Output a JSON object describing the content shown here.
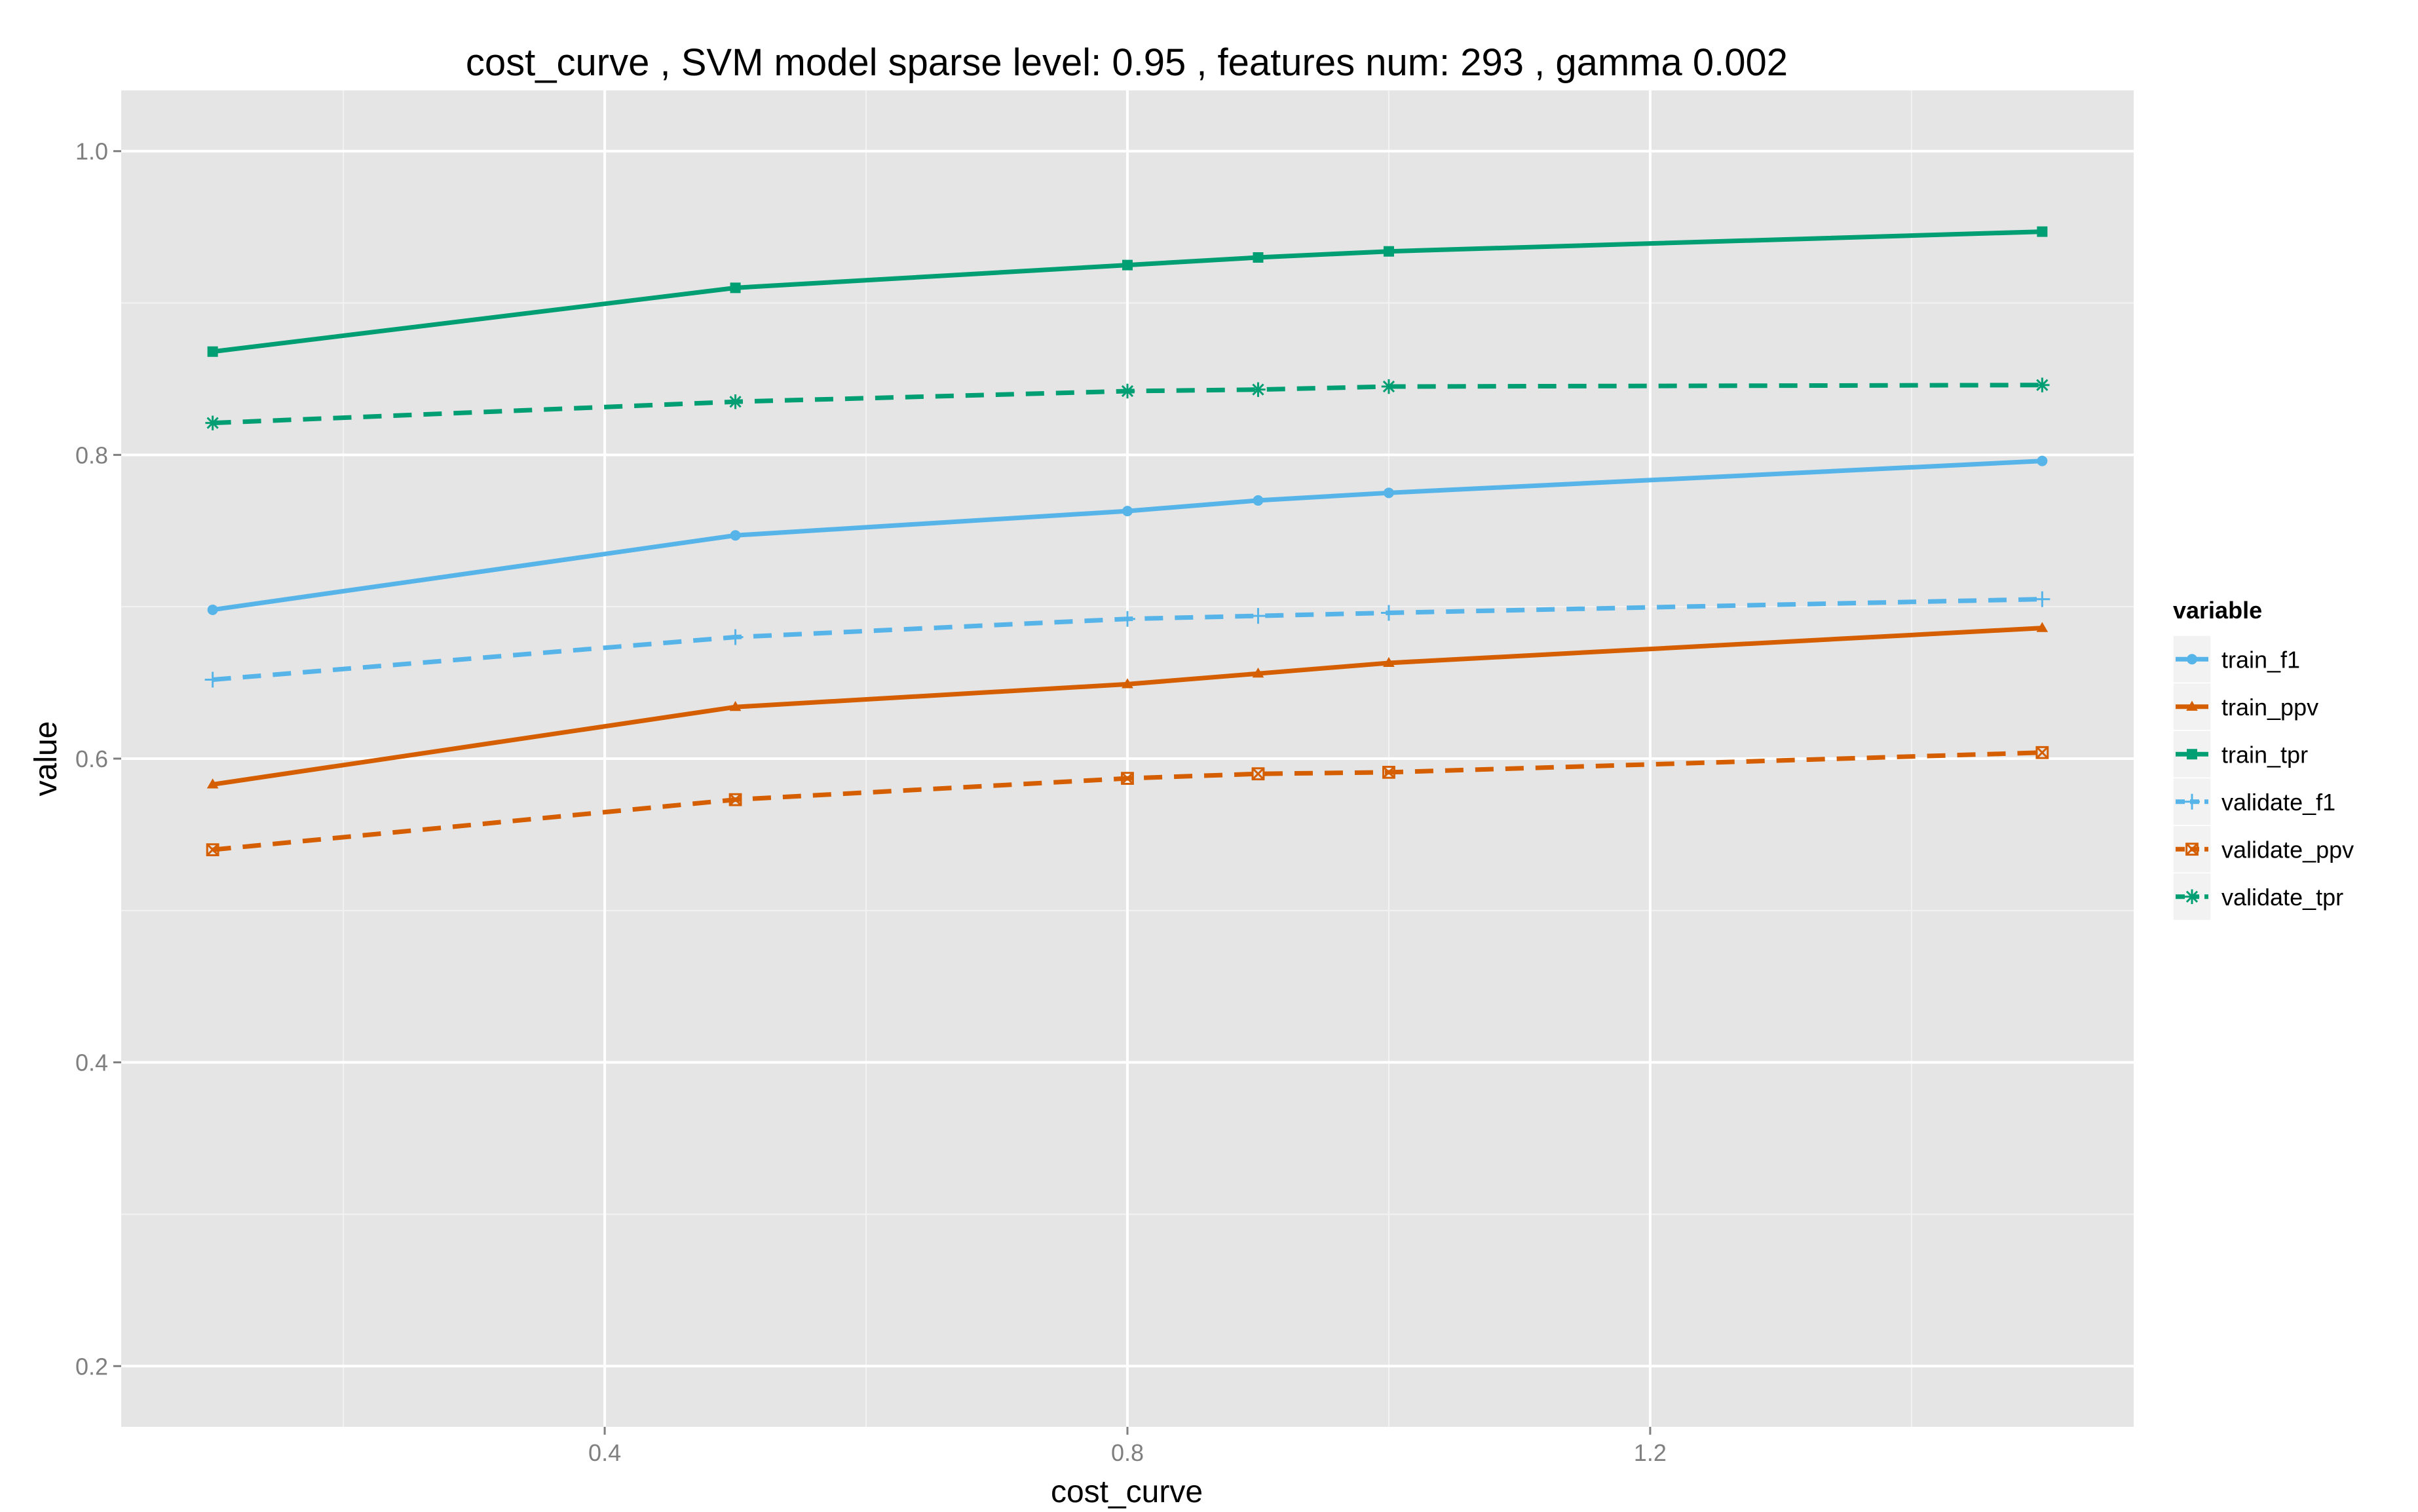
{
  "chart_data": {
    "type": "line",
    "title": "cost_curve ,  SVM model sparse level: 0.95 , features num: 293 , gamma 0.002",
    "xlabel": "cost_curve",
    "ylabel": "value",
    "xlim": [
      0.03,
      1.57
    ],
    "ylim": [
      0.16,
      1.04
    ],
    "x_ticks": [
      0.4,
      0.8,
      1.2
    ],
    "x_tick_labels": [
      "0.4",
      "0.8",
      "1.2"
    ],
    "y_ticks": [
      0.2,
      0.4,
      0.6,
      0.8,
      1.0
    ],
    "y_tick_labels": [
      "0.2",
      "0.4",
      "0.6",
      "0.8",
      "1.0"
    ],
    "grid": true,
    "legend_title": "variable",
    "legend_position": "right",
    "x": [
      0.1,
      0.5,
      0.8,
      0.9,
      1.0,
      1.5
    ],
    "series": [
      {
        "name": "train_f1",
        "color": "#56b4e9",
        "linetype": "solid",
        "marker": "circle",
        "values": [
          0.698,
          0.747,
          0.763,
          0.77,
          0.775,
          0.796
        ]
      },
      {
        "name": "train_ppv",
        "color": "#d55e00",
        "linetype": "solid",
        "marker": "triangle",
        "values": [
          0.583,
          0.634,
          0.649,
          0.656,
          0.663,
          0.686
        ]
      },
      {
        "name": "train_tpr",
        "color": "#009e73",
        "linetype": "solid",
        "marker": "square",
        "values": [
          0.868,
          0.91,
          0.925,
          0.93,
          0.934,
          0.947
        ]
      },
      {
        "name": "validate_f1",
        "color": "#56b4e9",
        "linetype": "dashed",
        "marker": "plus",
        "values": [
          0.652,
          0.68,
          0.692,
          0.694,
          0.696,
          0.705
        ]
      },
      {
        "name": "validate_ppv",
        "color": "#d55e00",
        "linetype": "dashed",
        "marker": "boxx",
        "values": [
          0.54,
          0.573,
          0.587,
          0.59,
          0.591,
          0.604
        ]
      },
      {
        "name": "validate_tpr",
        "color": "#009e73",
        "linetype": "dashed",
        "marker": "asterisk",
        "values": [
          0.821,
          0.835,
          0.842,
          0.843,
          0.845,
          0.846
        ]
      }
    ]
  }
}
